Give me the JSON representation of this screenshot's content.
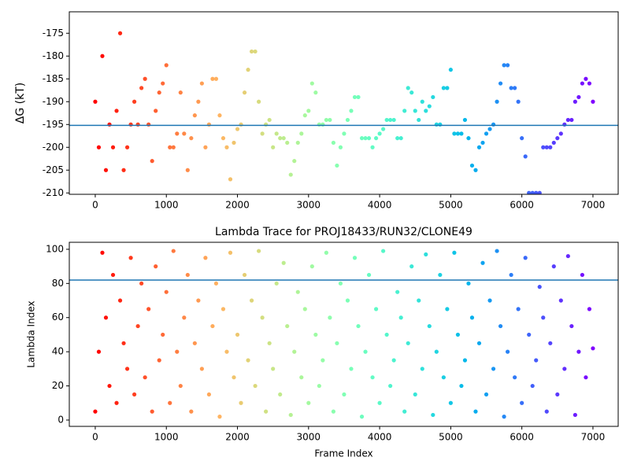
{
  "chart_data": [
    {
      "type": "scatter",
      "ylabel": "ΔG (kT)",
      "colormap": "rainbow",
      "colormap_reversed": true,
      "x": [
        0,
        50,
        100,
        150,
        200,
        250,
        300,
        350,
        400,
        450,
        500,
        550,
        600,
        650,
        700,
        750,
        800,
        850,
        900,
        950,
        1000,
        1050,
        1100,
        1150,
        1200,
        1250,
        1300,
        1350,
        1400,
        1450,
        1500,
        1550,
        1600,
        1650,
        1700,
        1750,
        1800,
        1850,
        1900,
        1950,
        2000,
        2050,
        2100,
        2150,
        2200,
        2250,
        2300,
        2350,
        2400,
        2450,
        2500,
        2550,
        2600,
        2650,
        2700,
        2750,
        2800,
        2850,
        2900,
        2950,
        3000,
        3050,
        3100,
        3150,
        3200,
        3250,
        3300,
        3350,
        3400,
        3450,
        3500,
        3550,
        3600,
        3650,
        3700,
        3750,
        3800,
        3850,
        3900,
        3950,
        4000,
        4050,
        4100,
        4150,
        4200,
        4250,
        4300,
        4350,
        4400,
        4450,
        4500,
        4550,
        4600,
        4650,
        4700,
        4750,
        4800,
        4850,
        4900,
        4950,
        5000,
        5050,
        5100,
        5150,
        5200,
        5250,
        5300,
        5350,
        5400,
        5450,
        5500,
        5550,
        5600,
        5650,
        5700,
        5750,
        5800,
        5850,
        5900,
        5950,
        6000,
        6050,
        6100,
        6150,
        6200,
        6250,
        6300,
        6350,
        6400,
        6450,
        6500,
        6550,
        6600,
        6650,
        6700,
        6750,
        6800,
        6850,
        6900,
        6950,
        7000
      ],
      "values": [
        -190,
        -200,
        -180,
        -205,
        -195,
        -200,
        -192,
        -175,
        -205,
        -200,
        -195,
        -190,
        -195,
        -187,
        -185,
        -195,
        -203,
        -192,
        -188,
        -186,
        -182,
        -200,
        -200,
        -197,
        -188,
        -197,
        -205,
        -198,
        -193,
        -190,
        -186,
        -200,
        -195,
        -185,
        -185,
        -193,
        -198,
        -200,
        -207,
        -199,
        -196,
        -195,
        -188,
        -183,
        -179,
        -179,
        -190,
        -197,
        -195,
        -194,
        -200,
        -197,
        -198,
        -198,
        -199,
        -206,
        -203,
        -199,
        -197,
        -193,
        -192,
        -186,
        -188,
        -195,
        -195,
        -194,
        -194,
        -199,
        -204,
        -200,
        -197,
        -194,
        -192,
        -189,
        -189,
        -198,
        -198,
        -198,
        -200,
        -198,
        -197,
        -196,
        -194,
        -194,
        -194,
        -198,
        -198,
        -192,
        -187,
        -188,
        -192,
        -194,
        -190,
        -192,
        -191,
        -189,
        -195,
        -195,
        -187,
        -187,
        -183,
        -197,
        -197,
        -197,
        -194,
        -198,
        -204,
        -205,
        -200,
        -199,
        -197,
        -196,
        -195,
        -190,
        -186,
        -182,
        -182,
        -187,
        -187,
        -190,
        -198,
        -202,
        -210,
        -210,
        -210,
        -210,
        -200,
        -200,
        -200,
        -199,
        -198,
        -197,
        -195,
        -194,
        -194,
        -190,
        -189,
        -186,
        -185,
        -186,
        -190
      ],
      "hline": -195.2,
      "hline_color": "#1f77b4",
      "xlim": [
        -365,
        7355
      ],
      "ylim": [
        -210.3,
        -170.3
      ],
      "xticks": [
        0,
        1000,
        2000,
        3000,
        4000,
        5000,
        6000,
        7000
      ],
      "yticks": [
        -210,
        -205,
        -200,
        -195,
        -190,
        -185,
        -180,
        -175
      ]
    },
    {
      "type": "scatter",
      "title": "Lambda Trace for PROJ18433/RUN32/CLONE49",
      "xlabel": "Frame Index",
      "ylabel": "Lambda Index",
      "colormap": "rainbow",
      "colormap_reversed": true,
      "x": [
        0,
        50,
        100,
        150,
        200,
        250,
        300,
        350,
        400,
        450,
        500,
        550,
        600,
        650,
        700,
        750,
        800,
        850,
        900,
        950,
        1000,
        1050,
        1100,
        1150,
        1200,
        1250,
        1300,
        1350,
        1400,
        1450,
        1500,
        1550,
        1600,
        1650,
        1700,
        1750,
        1800,
        1850,
        1900,
        1950,
        2000,
        2050,
        2100,
        2150,
        2200,
        2250,
        2300,
        2350,
        2400,
        2450,
        2500,
        2550,
        2600,
        2650,
        2700,
        2750,
        2800,
        2850,
        2900,
        2950,
        3000,
        3050,
        3100,
        3150,
        3200,
        3250,
        3300,
        3350,
        3400,
        3450,
        3500,
        3550,
        3600,
        3650,
        3700,
        3750,
        3800,
        3850,
        3900,
        3950,
        4000,
        4050,
        4100,
        4150,
        4200,
        4250,
        4300,
        4350,
        4400,
        4450,
        4500,
        4550,
        4600,
        4650,
        4700,
        4750,
        4800,
        4850,
        4900,
        4950,
        5000,
        5050,
        5100,
        5150,
        5200,
        5250,
        5300,
        5350,
        5400,
        5450,
        5500,
        5550,
        5600,
        5650,
        5700,
        5750,
        5800,
        5850,
        5900,
        5950,
        6000,
        6050,
        6100,
        6150,
        6200,
        6250,
        6300,
        6350,
        6400,
        6450,
        6500,
        6550,
        6600,
        6650,
        6700,
        6750,
        6800,
        6850,
        6900,
        6950,
        7000
      ],
      "values": [
        5,
        40,
        98,
        60,
        20,
        85,
        10,
        70,
        45,
        30,
        95,
        15,
        55,
        80,
        25,
        65,
        5,
        90,
        35,
        50,
        75,
        10,
        99,
        40,
        20,
        60,
        85,
        5,
        45,
        70,
        30,
        95,
        15,
        55,
        80,
        2,
        65,
        40,
        98,
        25,
        50,
        10,
        85,
        35,
        70,
        20,
        99,
        60,
        5,
        45,
        30,
        80,
        15,
        92,
        55,
        3,
        40,
        75,
        25,
        65,
        10,
        90,
        50,
        20,
        35,
        98,
        60,
        5,
        45,
        80,
        15,
        70,
        30,
        95,
        55,
        2,
        40,
        85,
        25,
        65,
        10,
        99,
        50,
        20,
        35,
        75,
        60,
        5,
        45,
        90,
        15,
        70,
        30,
        97,
        55,
        3,
        40,
        85,
        25,
        65,
        10,
        98,
        50,
        20,
        35,
        80,
        60,
        5,
        45,
        92,
        15,
        70,
        30,
        99,
        55,
        2,
        40,
        85,
        25,
        65,
        10,
        95,
        50,
        20,
        35,
        78,
        60,
        5,
        45,
        90,
        15,
        70,
        30,
        96,
        55,
        3,
        40,
        85,
        25,
        65,
        42
      ],
      "hline": 82,
      "hline_color": "#1f77b4",
      "xlim": [
        -365,
        7355
      ],
      "ylim": [
        -3.7,
        104.1
      ],
      "xticks": [
        0,
        1000,
        2000,
        3000,
        4000,
        5000,
        6000,
        7000
      ],
      "yticks": [
        0,
        20,
        40,
        60,
        80,
        100
      ]
    }
  ]
}
